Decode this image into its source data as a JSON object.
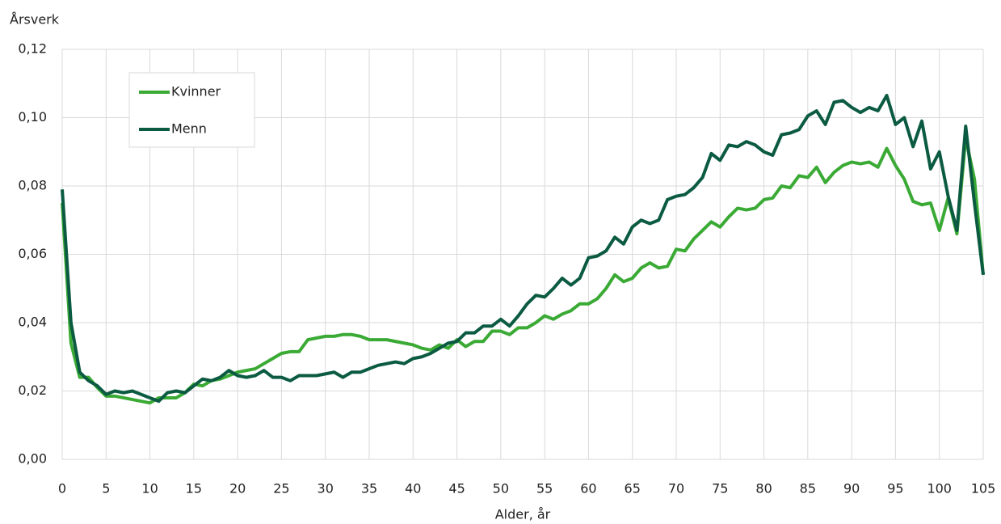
{
  "chart_data": {
    "type": "line",
    "ylabel": "Årsverk",
    "xlabel": "Alder, år",
    "x": [
      0,
      1,
      2,
      3,
      4,
      5,
      6,
      7,
      8,
      9,
      10,
      11,
      12,
      13,
      14,
      15,
      16,
      17,
      18,
      19,
      20,
      21,
      22,
      23,
      24,
      25,
      26,
      27,
      28,
      29,
      30,
      31,
      32,
      33,
      34,
      35,
      36,
      37,
      38,
      39,
      40,
      41,
      42,
      43,
      44,
      45,
      46,
      47,
      48,
      49,
      50,
      51,
      52,
      53,
      54,
      55,
      56,
      57,
      58,
      59,
      60,
      61,
      62,
      63,
      64,
      65,
      66,
      67,
      68,
      69,
      70,
      71,
      72,
      73,
      74,
      75,
      76,
      77,
      78,
      79,
      80,
      81,
      82,
      83,
      84,
      85,
      86,
      87,
      88,
      89,
      90,
      91,
      92,
      93,
      94,
      95,
      96,
      97,
      98,
      99,
      100,
      101,
      102,
      103,
      104,
      105
    ],
    "series": [
      {
        "name": "Kvinner",
        "color": "#3aaa35",
        "values": [
          0.075,
          0.034,
          0.024,
          0.024,
          0.021,
          0.0185,
          0.0185,
          0.018,
          0.0175,
          0.017,
          0.0165,
          0.018,
          0.018,
          0.018,
          0.0195,
          0.022,
          0.0215,
          0.023,
          0.0235,
          0.0245,
          0.0255,
          0.026,
          0.0265,
          0.028,
          0.0295,
          0.031,
          0.0315,
          0.0315,
          0.035,
          0.0355,
          0.036,
          0.036,
          0.0365,
          0.0365,
          0.036,
          0.035,
          0.035,
          0.035,
          0.0345,
          0.034,
          0.0335,
          0.0325,
          0.032,
          0.0335,
          0.0325,
          0.035,
          0.033,
          0.0345,
          0.0345,
          0.0375,
          0.0375,
          0.0365,
          0.0385,
          0.0385,
          0.04,
          0.042,
          0.041,
          0.0425,
          0.0435,
          0.0455,
          0.0455,
          0.047,
          0.05,
          0.054,
          0.052,
          0.053,
          0.056,
          0.0575,
          0.056,
          0.0565,
          0.0615,
          0.061,
          0.0645,
          0.067,
          0.0695,
          0.068,
          0.071,
          0.0735,
          0.073,
          0.0735,
          0.076,
          0.0765,
          0.08,
          0.0795,
          0.083,
          0.0825,
          0.0855,
          0.081,
          0.084,
          0.086,
          0.087,
          0.0865,
          0.087,
          0.0855,
          0.091,
          0.086,
          0.082,
          0.0755,
          0.0745,
          0.075,
          0.067,
          0.0765,
          0.066,
          0.094,
          0.082,
          0.054
        ]
      },
      {
        "name": "Menn",
        "color": "#0b5a42",
        "values": [
          0.079,
          0.04,
          0.0255,
          0.023,
          0.0215,
          0.019,
          0.02,
          0.0195,
          0.02,
          0.019,
          0.018,
          0.017,
          0.0195,
          0.02,
          0.0195,
          0.0215,
          0.0235,
          0.023,
          0.024,
          0.026,
          0.0245,
          0.024,
          0.0245,
          0.026,
          0.024,
          0.024,
          0.023,
          0.0245,
          0.0245,
          0.0245,
          0.025,
          0.0255,
          0.024,
          0.0255,
          0.0255,
          0.0265,
          0.0275,
          0.028,
          0.0285,
          0.028,
          0.0295,
          0.03,
          0.031,
          0.0325,
          0.034,
          0.0345,
          0.037,
          0.037,
          0.039,
          0.039,
          0.041,
          0.039,
          0.042,
          0.0455,
          0.048,
          0.0475,
          0.05,
          0.053,
          0.051,
          0.053,
          0.059,
          0.0595,
          0.061,
          0.065,
          0.063,
          0.068,
          0.07,
          0.069,
          0.07,
          0.076,
          0.077,
          0.0775,
          0.0795,
          0.0825,
          0.0895,
          0.0875,
          0.092,
          0.0915,
          0.093,
          0.092,
          0.09,
          0.089,
          0.095,
          0.0955,
          0.0965,
          0.1005,
          0.102,
          0.098,
          0.1045,
          0.105,
          0.103,
          0.1015,
          0.103,
          0.102,
          0.1065,
          0.098,
          0.1,
          0.0915,
          0.099,
          0.085,
          0.09,
          0.077,
          0.067,
          0.0975,
          0.075,
          0.054
        ]
      }
    ],
    "xlim": [
      0,
      105
    ],
    "xticks": [
      0,
      5,
      10,
      15,
      20,
      25,
      30,
      35,
      40,
      45,
      50,
      55,
      60,
      65,
      70,
      75,
      80,
      85,
      90,
      95,
      100,
      105
    ],
    "ylim": [
      0,
      0.12
    ],
    "yticks": [
      {
        "value": 0,
        "label": "0,00"
      },
      {
        "value": 0.02,
        "label": "0,02"
      },
      {
        "value": 0.04,
        "label": "0,04"
      },
      {
        "value": 0.06,
        "label": "0,06"
      },
      {
        "value": 0.08,
        "label": "0,08"
      },
      {
        "value": 0.1,
        "label": "0,10"
      },
      {
        "value": 0.12,
        "label": "0,12"
      }
    ],
    "grid": true,
    "legend": "upper left"
  }
}
